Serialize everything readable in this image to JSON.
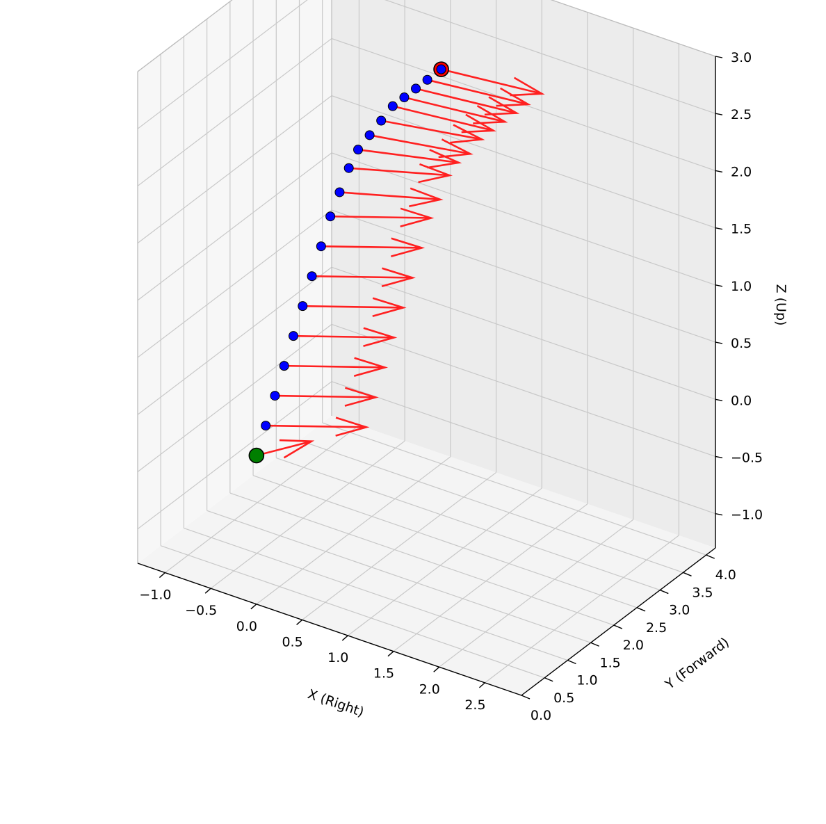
{
  "chart_data": {
    "type": "scatter",
    "subtype": "3d-trajectory-with-direction-arrows",
    "axes": {
      "x": {
        "label": "X (Right)",
        "ticks": [
          -1.0,
          -0.5,
          0.0,
          0.5,
          1.0,
          1.5,
          2.0,
          2.5
        ],
        "tick_labels": [
          "−1.0",
          "−0.5",
          "0.0",
          "0.5",
          "1.0",
          "1.5",
          "2.0",
          "2.5"
        ],
        "range": [
          -1.3,
          2.9
        ]
      },
      "y": {
        "label": "Y (Forward)",
        "ticks": [
          0.0,
          0.5,
          1.0,
          1.5,
          2.0,
          2.5,
          3.0,
          3.5,
          4.0
        ],
        "tick_labels": [
          "0.0",
          "0.5",
          "1.0",
          "1.5",
          "2.0",
          "2.5",
          "3.0",
          "3.5",
          "4.0"
        ],
        "range": [
          0.0,
          4.2
        ]
      },
      "z": {
        "label": "Z (Up)",
        "ticks": [
          -1.0,
          -0.5,
          0.0,
          0.5,
          1.0,
          1.5,
          2.0,
          2.5,
          3.0
        ],
        "tick_labels": [
          "−1.0",
          "−0.5",
          "0.0",
          "0.5",
          "1.0",
          "1.5",
          "2.0",
          "2.5",
          "3.0"
        ],
        "range": [
          -1.3,
          3.0
        ]
      }
    },
    "grid": true,
    "colors": {
      "points": "#0000ff",
      "arrows": "#ff2020",
      "start_marker": "#007f00",
      "end_marker": "#ff0000",
      "pane": "#f2f2f2",
      "grid": "#c8c8c8"
    },
    "series": [
      {
        "points": [
          [
            0.0,
            0.0,
            0.0
          ],
          [
            0.0,
            0.2,
            0.2
          ],
          [
            0.0,
            0.4,
            0.4
          ],
          [
            0.0,
            0.6,
            0.6
          ],
          [
            0.0,
            0.8,
            0.8
          ],
          [
            0.0,
            1.0,
            1.0
          ],
          [
            0.0,
            1.2,
            1.2
          ],
          [
            0.0,
            1.4,
            1.4
          ],
          [
            0.0,
            1.6,
            1.6
          ],
          [
            0.0,
            1.8,
            1.75
          ],
          [
            0.0,
            2.0,
            1.9
          ],
          [
            0.0,
            2.2,
            2.0
          ],
          [
            0.0,
            2.45,
            2.05
          ],
          [
            0.0,
            2.7,
            2.1
          ],
          [
            0.0,
            2.95,
            2.15
          ],
          [
            0.0,
            3.2,
            2.15
          ],
          [
            0.0,
            3.45,
            2.15
          ],
          [
            0.0,
            3.7,
            2.15
          ],
          [
            0.0,
            4.0,
            2.15
          ]
        ],
        "arrows": [
          [
            0.5,
            0.2,
            0.2
          ],
          [
            1.0,
            0.2,
            0.2
          ],
          [
            1.0,
            0.2,
            0.2
          ],
          [
            1.0,
            0.2,
            0.2
          ],
          [
            1.0,
            0.2,
            0.2
          ],
          [
            1.0,
            0.2,
            0.2
          ],
          [
            1.0,
            0.2,
            0.2
          ],
          [
            1.0,
            0.2,
            0.2
          ],
          [
            1.0,
            0.2,
            0.2
          ],
          [
            1.0,
            0.2,
            0.15
          ],
          [
            1.0,
            0.2,
            0.15
          ],
          [
            1.0,
            0.2,
            0.1
          ],
          [
            1.0,
            0.2,
            0.05
          ],
          [
            1.0,
            0.2,
            0.05
          ],
          [
            1.0,
            0.2,
            0.0
          ],
          [
            1.0,
            0.2,
            0.0
          ],
          [
            1.0,
            0.2,
            0.0
          ],
          [
            1.0,
            0.2,
            0.0
          ],
          [
            1.0,
            0.2,
            0.0
          ]
        ],
        "start_index": 0,
        "end_index": 18
      }
    ]
  }
}
